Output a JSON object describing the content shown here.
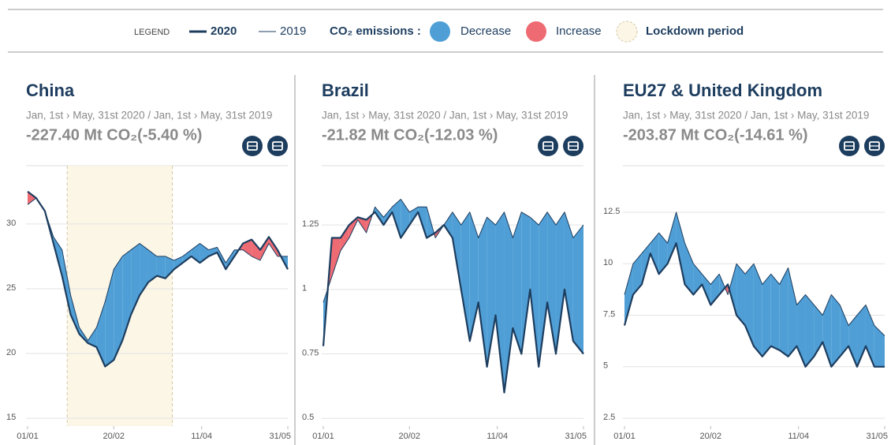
{
  "legend": {
    "label": "LEGEND",
    "current": "2020",
    "previous": "2019",
    "emissions": "CO₂ emissions :",
    "decrease": "Decrease",
    "increase": "Increase",
    "lockdown": "Lockdown period"
  },
  "colors": {
    "decrease": "#4f9fd6",
    "increase": "#ee6b73",
    "lockdown": "#fbf6e6",
    "line": "#1d3d5f"
  },
  "chart_data": [
    {
      "type": "line",
      "title": "China",
      "subtitle": "Jan, 1st › May, 31st 2020 / Jan, 1st › May, 31st 2019",
      "summary": "-227.40 Mt CO₂(-5.40 %)",
      "x": [
        "01/01",
        "06/01",
        "11/01",
        "16/01",
        "21/01",
        "26/01",
        "31/01",
        "05/02",
        "10/02",
        "15/02",
        "20/02",
        "25/02",
        "01/03",
        "06/03",
        "11/03",
        "16/03",
        "21/03",
        "26/03",
        "31/03",
        "05/04",
        "10/04",
        "15/04",
        "20/04",
        "25/04",
        "30/04",
        "05/05",
        "10/05",
        "15/05",
        "20/05",
        "25/05",
        "31/05"
      ],
      "series": [
        {
          "values": [
            32.5,
            32,
            31,
            28.5,
            26,
            23,
            21.5,
            20.8,
            20.5,
            19,
            19.5,
            21,
            23,
            24.5,
            25.5,
            26,
            25.8,
            26.5,
            27,
            27.5,
            27,
            27.5,
            27.8,
            26.5,
            27.5,
            28.5,
            28.8,
            28,
            29,
            28,
            26.5
          ]
        },
        {
          "values": [
            31.5,
            32,
            31,
            29,
            28,
            24.5,
            22,
            21,
            22,
            24,
            26.5,
            27.5,
            28,
            28.5,
            28,
            27.5,
            27.5,
            27.2,
            27.5,
            28,
            28.5,
            28,
            28.2,
            27,
            28,
            28,
            27.5,
            27.2,
            28.5,
            27.5,
            27.5
          ]
        }
      ],
      "lockdown": [
        "24/01",
        "25/03"
      ],
      "xlim": [
        "01/01",
        "31/05"
      ],
      "xticks": [
        "01/01",
        "20/02",
        "11/04",
        "31/05"
      ],
      "ylim": [
        14.4,
        34.5
      ],
      "yticks": [
        15,
        20,
        25,
        30
      ],
      "grid": true
    },
    {
      "type": "line",
      "title": "Brazil",
      "subtitle": "Jan, 1st › May, 31st 2020 / Jan, 1st › May, 31st 2019",
      "summary": "-21.82 Mt CO₂(-12.03 %)",
      "x": [
        "01/01",
        "06/01",
        "11/01",
        "16/01",
        "21/01",
        "26/01",
        "31/01",
        "05/02",
        "10/02",
        "15/02",
        "20/02",
        "25/02",
        "01/03",
        "06/03",
        "11/03",
        "16/03",
        "21/03",
        "26/03",
        "31/03",
        "05/04",
        "10/04",
        "15/04",
        "20/04",
        "25/04",
        "30/04",
        "05/05",
        "10/05",
        "15/05",
        "20/05",
        "25/05",
        "31/05"
      ],
      "series": [
        {
          "values": [
            0.78,
            1.2,
            1.2,
            1.25,
            1.28,
            1.27,
            1.3,
            1.25,
            1.3,
            1.2,
            1.25,
            1.3,
            1.2,
            1.22,
            1.25,
            1.2,
            1.0,
            0.8,
            0.95,
            0.7,
            0.9,
            0.6,
            0.85,
            0.75,
            1.0,
            0.7,
            0.95,
            0.75,
            1.0,
            0.8,
            0.75
          ]
        },
        {
          "values": [
            0.95,
            1.05,
            1.15,
            1.2,
            1.27,
            1.22,
            1.32,
            1.28,
            1.32,
            1.35,
            1.3,
            1.32,
            1.32,
            1.2,
            1.25,
            1.3,
            1.25,
            1.3,
            1.2,
            1.28,
            1.25,
            1.3,
            1.2,
            1.3,
            1.28,
            1.25,
            1.3,
            1.25,
            1.3,
            1.2,
            1.25
          ]
        }
      ],
      "xlim": [
        "01/01",
        "31/05"
      ],
      "xticks": [
        "01/01",
        "20/02",
        "11/04",
        "31/05"
      ],
      "ylim": [
        0.47,
        1.48
      ],
      "yticks": [
        0.5,
        0.75,
        1,
        1.25
      ],
      "grid": true
    },
    {
      "type": "line",
      "title": "EU27 & United Kingdom",
      "subtitle": "Jan, 1st › May, 31st 2020 / Jan, 1st › May, 31st 2019",
      "summary": "-203.87 Mt CO₂(-14.61 %)",
      "x": [
        "01/01",
        "06/01",
        "11/01",
        "16/01",
        "21/01",
        "26/01",
        "31/01",
        "05/02",
        "10/02",
        "15/02",
        "20/02",
        "25/02",
        "01/03",
        "06/03",
        "11/03",
        "16/03",
        "21/03",
        "26/03",
        "31/03",
        "05/04",
        "10/04",
        "15/04",
        "20/04",
        "25/04",
        "30/04",
        "05/05",
        "10/05",
        "15/05",
        "20/05",
        "25/05",
        "31/05"
      ],
      "series": [
        {
          "values": [
            7,
            8.5,
            9,
            10.5,
            9.5,
            10,
            11,
            9,
            8.5,
            9,
            8,
            8.5,
            9,
            7.5,
            7,
            6,
            5.5,
            6,
            5.8,
            5.5,
            6,
            5,
            5.5,
            6.2,
            5,
            5.5,
            6,
            5,
            6,
            5,
            5
          ]
        },
        {
          "values": [
            8.5,
            10,
            10.5,
            11,
            11.5,
            11,
            12.5,
            11,
            10,
            9.5,
            9,
            9.5,
            8.5,
            10,
            9.5,
            10,
            9,
            9.5,
            9,
            9.8,
            8,
            8.5,
            8,
            7.5,
            8.5,
            8,
            7,
            7.5,
            8,
            7,
            6.5
          ]
        }
      ],
      "xlim": [
        "01/01",
        "31/05"
      ],
      "xticks": [
        "01/01",
        "20/02",
        "11/04",
        "31/05"
      ],
      "ylim": [
        2.12,
        14.76
      ],
      "yticks": [
        2.5,
        5,
        7.5,
        10,
        12.5
      ],
      "grid": true
    }
  ]
}
